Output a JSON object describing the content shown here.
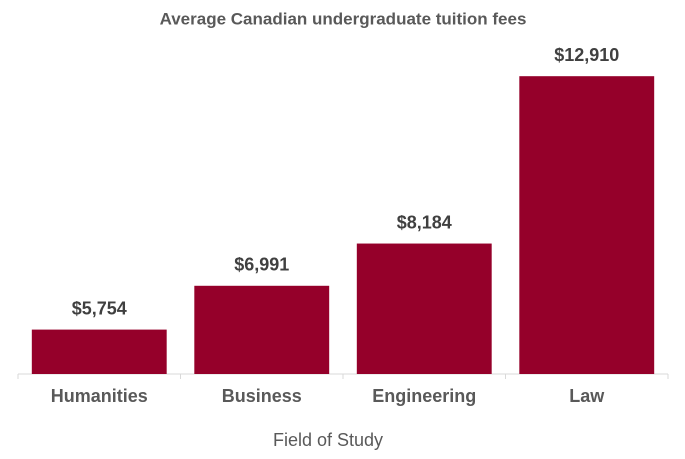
{
  "chart_data": {
    "type": "bar",
    "title": "Average Canadian undergraduate tuition fees",
    "x_label": "Field of Study",
    "categories": [
      "Humanities",
      "Business",
      "Engineering",
      "Law"
    ],
    "values": [
      5754,
      6991,
      8184,
      12910
    ],
    "value_labels": [
      "$5,754",
      "$6,991",
      "$8,184",
      "$12,910"
    ],
    "color": "#95002a",
    "ylim": [
      4500,
      13000
    ]
  }
}
